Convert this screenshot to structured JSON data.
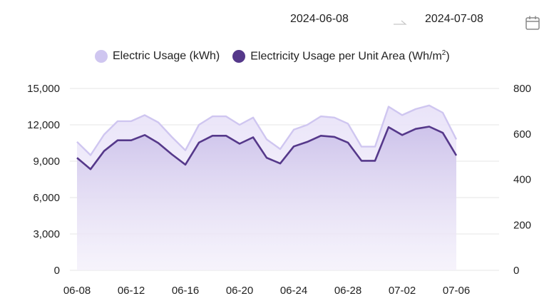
{
  "date_range": {
    "start": "2024-06-08",
    "end": "2024-07-08"
  },
  "icons": {
    "range_arrow": "arrow-right-icon",
    "calendar": "calendar-icon"
  },
  "legend": {
    "items": [
      {
        "label": "Electric Usage (kWh)",
        "color": "#cfc6f0"
      },
      {
        "label": "Electricity Usage per Unit Area (Wh/m",
        "sup": "2",
        "suffix": ")",
        "color": "#55388a"
      }
    ]
  },
  "colors": {
    "light_series": "#cfc6f0",
    "dark_series": "#55388a",
    "grid": "#e6e6e6"
  },
  "chart_data": {
    "type": "area",
    "x": [
      "06-08",
      "06-09",
      "06-10",
      "06-11",
      "06-12",
      "06-13",
      "06-14",
      "06-15",
      "06-16",
      "06-17",
      "06-18",
      "06-19",
      "06-20",
      "06-21",
      "06-22",
      "06-23",
      "06-24",
      "06-25",
      "06-26",
      "06-27",
      "06-28",
      "06-29",
      "06-30",
      "07-01",
      "07-02",
      "07-03",
      "07-04",
      "07-05",
      "07-06",
      "07-07"
    ],
    "x_tick_labels": [
      "06-08",
      "06-12",
      "06-16",
      "06-20",
      "06-24",
      "06-28",
      "07-02",
      "07-06"
    ],
    "y_left": {
      "ticks": [
        "0",
        "3,000",
        "6,000",
        "9,000",
        "12,000",
        "15,000"
      ],
      "range": [
        0,
        15000
      ]
    },
    "y_right": {
      "ticks": [
        "0",
        "200",
        "400",
        "600",
        "800"
      ],
      "range": [
        0,
        800
      ]
    },
    "grid": true,
    "legend_position": "top",
    "series": [
      {
        "name": "Electric Usage (kWh)",
        "axis": "left",
        "values": [
          10600,
          9500,
          11200,
          12300,
          12300,
          12800,
          12200,
          11000,
          9900,
          12000,
          12700,
          12700,
          12000,
          12600,
          10800,
          10000,
          11600,
          12000,
          12700,
          12600,
          12100,
          10200,
          10200,
          13500,
          12800,
          13300,
          13600,
          13000,
          10800,
          null
        ]
      },
      {
        "name": "Electricity Usage per Unit Area (Wh/m2)",
        "axis": "right",
        "values": [
          495,
          445,
          525,
          572,
          572,
          595,
          560,
          510,
          465,
          562,
          592,
          592,
          557,
          585,
          495,
          470,
          545,
          565,
          592,
          587,
          562,
          482,
          482,
          630,
          595,
          622,
          632,
          605,
          505,
          null
        ]
      }
    ]
  }
}
